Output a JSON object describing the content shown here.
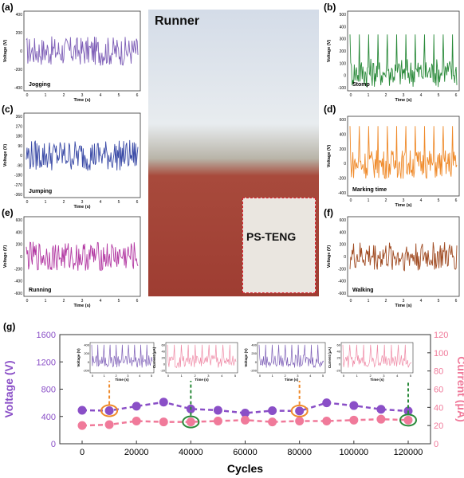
{
  "panels": [
    {
      "id": "a",
      "label": "(a)",
      "name": "Jogging",
      "color": "#7e5fb7",
      "yticks": [
        "400",
        "200",
        "0",
        "-200",
        "-400"
      ],
      "ylim": [
        -400,
        400
      ]
    },
    {
      "id": "b",
      "label": "(b)",
      "name": "Stomp",
      "color": "#2a8a3a",
      "yticks": [
        "500",
        "400",
        "300",
        "200",
        "100",
        "0",
        "-100"
      ],
      "ylim": [
        -150,
        500
      ]
    },
    {
      "id": "c",
      "label": "(c)",
      "name": "Jumping",
      "color": "#3a4aa6",
      "yticks": [
        "360",
        "270",
        "180",
        "90",
        "0",
        "-90",
        "-180",
        "-270",
        "-360"
      ],
      "ylim": [
        -360,
        360
      ]
    },
    {
      "id": "d",
      "label": "(d)",
      "name": "Marking time",
      "color": "#ef8a2a",
      "yticks": [
        "600",
        "400",
        "200",
        "0",
        "-200",
        "-400"
      ],
      "ylim": [
        -400,
        600
      ]
    },
    {
      "id": "e",
      "label": "(e)",
      "name": "Running",
      "color": "#b33aa3",
      "yticks": [
        "600",
        "400",
        "200",
        "0",
        "-200",
        "-400",
        "-600"
      ],
      "ylim": [
        -600,
        600
      ]
    },
    {
      "id": "f",
      "label": "(f)",
      "name": "Walking",
      "color": "#a04b22",
      "yticks": [
        "600",
        "400",
        "200",
        "0",
        "-200",
        "-400",
        "-600"
      ],
      "ylim": [
        -600,
        600
      ]
    }
  ],
  "small_axes": {
    "ylabel": "Voltage (V)",
    "xlabel": "Time (s)",
    "xticks": [
      "0",
      "1",
      "2",
      "3",
      "4",
      "5",
      "6"
    ]
  },
  "photo": {
    "title": "Runner",
    "inset_label": "PS-TENG"
  },
  "panel_g": {
    "label": "(g)",
    "insets": [
      {
        "ylabel": "Voltage (V)",
        "xlabel": "Time (s)",
        "color": "#7e5fb7",
        "yticks": [
          "400",
          "200",
          "0",
          "-200"
        ]
      },
      {
        "ylabel": "Current (μA)",
        "xlabel": "Time (s)",
        "color": "#ef8aa6",
        "yticks": [
          "60",
          "40",
          "20",
          "0",
          "-20"
        ]
      },
      {
        "ylabel": "Voltage (V)",
        "xlabel": "Time (s)",
        "color": "#7e5fb7",
        "yticks": [
          "400",
          "200",
          "0",
          "-200"
        ]
      },
      {
        "ylabel": "Current (μA)",
        "xlabel": "Time (s)",
        "color": "#ef8aa6",
        "yticks": [
          "60",
          "40",
          "20",
          "0",
          "-20"
        ]
      }
    ],
    "inset_xticks": [
      "0",
      "1",
      "2",
      "3",
      "4",
      "5"
    ]
  },
  "chart_data": {
    "type": "line",
    "x": [
      0,
      10000,
      20000,
      30000,
      40000,
      50000,
      60000,
      70000,
      80000,
      90000,
      100000,
      110000,
      120000
    ],
    "xlabel": "Cycles",
    "xticks": [
      "0",
      "20000",
      "40000",
      "60000",
      "80000",
      "100000",
      "120000"
    ],
    "xlim": [
      0,
      120000
    ],
    "series": [
      {
        "axis": "left",
        "values": [
          490,
          485,
          550,
          610,
          510,
          490,
          450,
          485,
          480,
          600,
          560,
          505,
          480
        ],
        "color": "#8a4fc7"
      },
      {
        "axis": "right",
        "values": [
          20,
          21,
          25,
          24,
          24,
          25,
          26,
          24,
          25,
          25,
          26,
          27,
          26
        ],
        "color": "#f07a9a"
      }
    ],
    "ylabel_left": "Voltage (V)",
    "ylim_left": [
      0,
      1600
    ],
    "yticks_left": [
      "0",
      "400",
      "800",
      "1200",
      "1600"
    ],
    "ylabel_right": "Current (μA)",
    "ylim_right": [
      0,
      120
    ],
    "yticks_right": [
      "0",
      "20",
      "40",
      "60",
      "80",
      "100",
      "120"
    ]
  }
}
